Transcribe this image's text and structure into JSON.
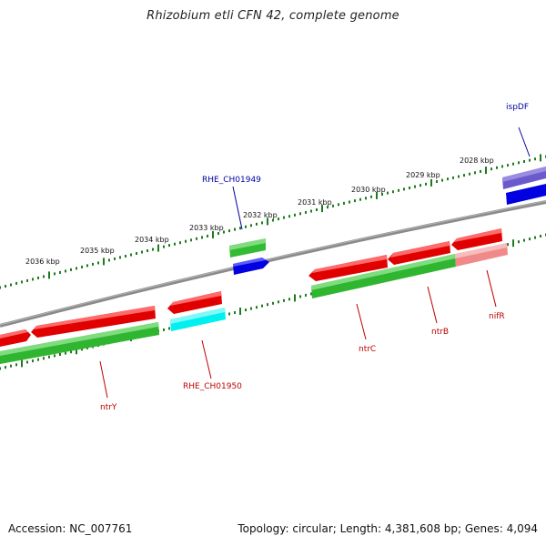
{
  "title": "Rhizobium etli CFN 42, complete genome",
  "footer": {
    "accession": "Accession: NC_007761",
    "summary": "Topology: circular; Length: 4,381,608 bp; Genes: 4,094"
  },
  "colors": {
    "backbone": "#808080",
    "ruler_ticks": "#1f7a1f",
    "forward_red": "#e00000",
    "forward_red_light": "#f08080",
    "green": "#2fb52f",
    "blue": "#0000dd",
    "slate_blue": "#6a5acd",
    "cyan": "#00f0f0",
    "label_red": "#c00000",
    "label_blue": "#0000a0"
  },
  "scale_labels": [
    "2036 kbp",
    "2035 kbp",
    "2034 kbp",
    "2033 kbp",
    "2032 kbp",
    "2031 kbp",
    "2030 kbp",
    "2029 kbp",
    "2028 kbp"
  ],
  "features": [
    {
      "label": "ispDF",
      "color": "label_blue"
    },
    {
      "label": "RHE_CH01949",
      "color": "label_blue"
    },
    {
      "label": "ntrY",
      "color": "label_red"
    },
    {
      "label": "RHE_CH01950",
      "color": "label_red"
    },
    {
      "label": "ntrC",
      "color": "label_red"
    },
    {
      "label": "ntrB",
      "color": "label_red"
    },
    {
      "label": "nifR",
      "color": "label_red"
    }
  ]
}
